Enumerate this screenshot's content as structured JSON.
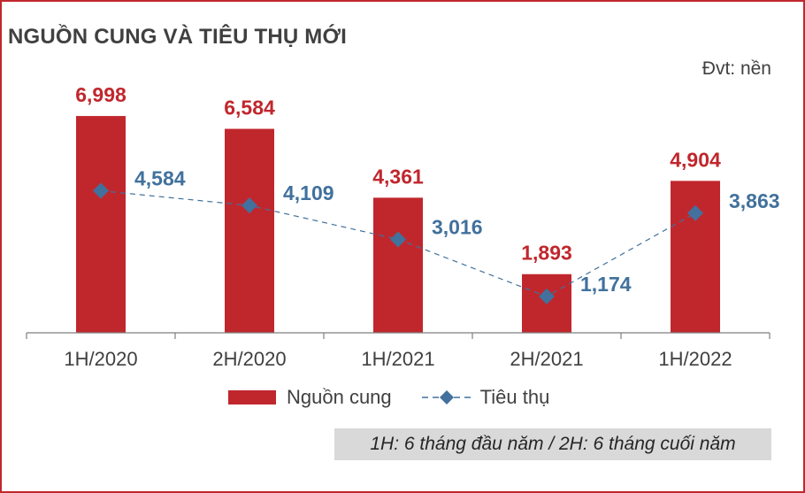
{
  "title": "NGUỒN CUNG VÀ TIÊU THỤ MỚI",
  "unit": "Đvt: nền",
  "note": "1H: 6 tháng đầu năm / 2H: 6 tháng cuối năm",
  "legend": {
    "supply_label": "Nguồn cung",
    "consumption_label": "Tiêu thụ"
  },
  "colors": {
    "bar": "#c0272d",
    "line": "#41719c",
    "bar_label": "#c0272d",
    "line_label": "#41719c",
    "axis": "#7f7f7f"
  },
  "chart_data": {
    "type": "bar",
    "categories": [
      "1H/2020",
      "2H/2020",
      "1H/2021",
      "2H/2021",
      "1H/2022"
    ],
    "series": [
      {
        "name": "Nguồn cung",
        "type": "bar",
        "values": [
          6998,
          6584,
          4361,
          1893,
          4904
        ],
        "labels": [
          "6,998",
          "6,584",
          "4,361",
          "1,893",
          "4,904"
        ]
      },
      {
        "name": "Tiêu thụ",
        "type": "line",
        "style": "dashed",
        "marker": "diamond",
        "values": [
          4584,
          4109,
          3016,
          1174,
          3863
        ],
        "labels": [
          "4,584",
          "4,109",
          "3,016",
          "1,174",
          "3,863"
        ]
      }
    ],
    "ylim": [
      0,
      7000
    ],
    "grid": false,
    "legend_position": "bottom"
  }
}
